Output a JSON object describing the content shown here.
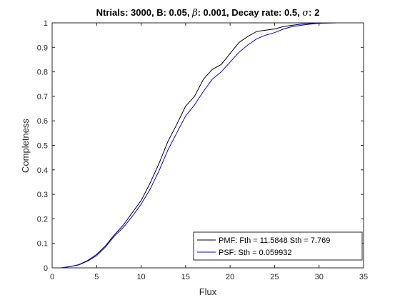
{
  "chart_data": {
    "type": "line",
    "title": {
      "part1": "Ntrials: 3000, B: 0.05, ",
      "sym1": "β",
      "part2": ": 0.001, Decay rate: 0.5, ",
      "sym2": "σ",
      "part3": ": 2"
    },
    "xlabel": "Flux",
    "ylabel": "Completness",
    "xlim": [
      0,
      35
    ],
    "ylim": [
      0,
      1
    ],
    "xticks": [
      0,
      5,
      10,
      15,
      20,
      25,
      30,
      35
    ],
    "yticks": [
      0,
      0.1,
      0.2,
      0.3,
      0.4,
      0.5,
      0.6,
      0.7,
      0.8,
      0.9,
      1
    ],
    "ytick_labels": [
      "0",
      "0.1",
      "0.2",
      "0.3",
      "0.4",
      "0.5",
      "0.6",
      "0.7",
      "0.8",
      "0.9",
      "1"
    ],
    "grid": false,
    "legend_position": "bottom-right",
    "series": [
      {
        "name": "PMF: Fth = 11.5848 Sth = 7.769",
        "color": "#000000",
        "x": [
          1,
          2,
          3,
          4,
          5,
          6,
          7,
          8,
          9,
          10,
          11,
          12,
          13,
          14,
          15,
          16,
          17,
          18,
          19,
          20,
          21,
          22,
          23,
          24,
          25,
          26,
          27,
          28,
          29,
          30,
          31,
          32
        ],
        "y": [
          0.0,
          0.005,
          0.013,
          0.03,
          0.055,
          0.09,
          0.135,
          0.175,
          0.225,
          0.275,
          0.345,
          0.425,
          0.515,
          0.585,
          0.66,
          0.7,
          0.77,
          0.81,
          0.83,
          0.875,
          0.92,
          0.945,
          0.965,
          0.97,
          0.975,
          0.985,
          0.99,
          0.995,
          0.997,
          0.998,
          0.999,
          1.0
        ]
      },
      {
        "name": "PSF: Sth = 0.059932",
        "color": "#0000ff",
        "x": [
          1,
          2,
          3,
          4,
          5,
          6,
          7,
          8,
          9,
          10,
          11,
          12,
          13,
          14,
          15,
          16,
          17,
          18,
          19,
          20,
          21,
          22,
          23,
          24,
          25,
          26,
          27,
          28,
          29,
          30,
          31,
          32
        ],
        "y": [
          0.0,
          0.005,
          0.012,
          0.028,
          0.05,
          0.085,
          0.13,
          0.165,
          0.21,
          0.26,
          0.32,
          0.395,
          0.48,
          0.55,
          0.62,
          0.665,
          0.72,
          0.77,
          0.8,
          0.84,
          0.88,
          0.91,
          0.935,
          0.95,
          0.96,
          0.975,
          0.985,
          0.99,
          0.995,
          0.998,
          0.999,
          1.0
        ]
      }
    ]
  }
}
